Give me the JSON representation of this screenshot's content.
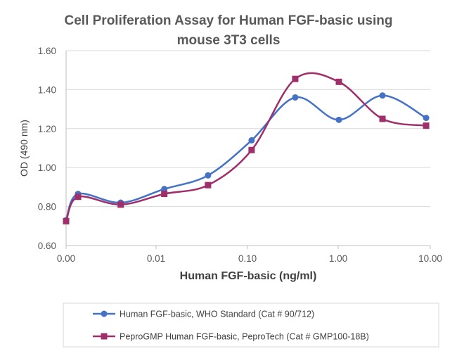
{
  "chart_data": {
    "type": "line",
    "title_lines": [
      "Cell Proliferation Assay for Human FGF-basic using",
      "mouse 3T3 cells"
    ],
    "xlabel": "Human FGF-basic (ng/ml)",
    "ylabel": "OD (490 nm)",
    "x_scale": "log",
    "x_axis_tick_labels": [
      "0.00",
      "0.01",
      "0.10",
      "1.00",
      "10.00"
    ],
    "y_axis_tick_labels": [
      "0.60",
      "0.80",
      "1.00",
      "1.20",
      "1.40",
      "1.60"
    ],
    "ylim": [
      0.6,
      1.6
    ],
    "grid": "horizontal",
    "smooth": true,
    "legend_position": "bottom",
    "x": [
      0.0,
      0.0014,
      0.0041,
      0.0123,
      0.037,
      0.111,
      0.333,
      1.0,
      3.0,
      9.0
    ],
    "series": [
      {
        "name": "Human FGF-basic, WHO Standard (Cat # 90/712)",
        "color": "#4472c4",
        "marker": "circle",
        "values": [
          0.73,
          0.865,
          0.82,
          0.89,
          0.96,
          1.14,
          1.36,
          1.245,
          1.37,
          1.255
        ]
      },
      {
        "name": "PeproGMP Human FGF-basic, PeproTech (Cat # GMP100-18B)",
        "color": "#9e2f6a",
        "marker": "square",
        "values": [
          0.725,
          0.85,
          0.81,
          0.865,
          0.91,
          1.09,
          1.455,
          1.44,
          1.25,
          1.215
        ]
      }
    ]
  },
  "colors": {
    "grid": "#d9d9d9",
    "axis": "#bfbfbf",
    "legend_border": "#d9d9d9"
  }
}
